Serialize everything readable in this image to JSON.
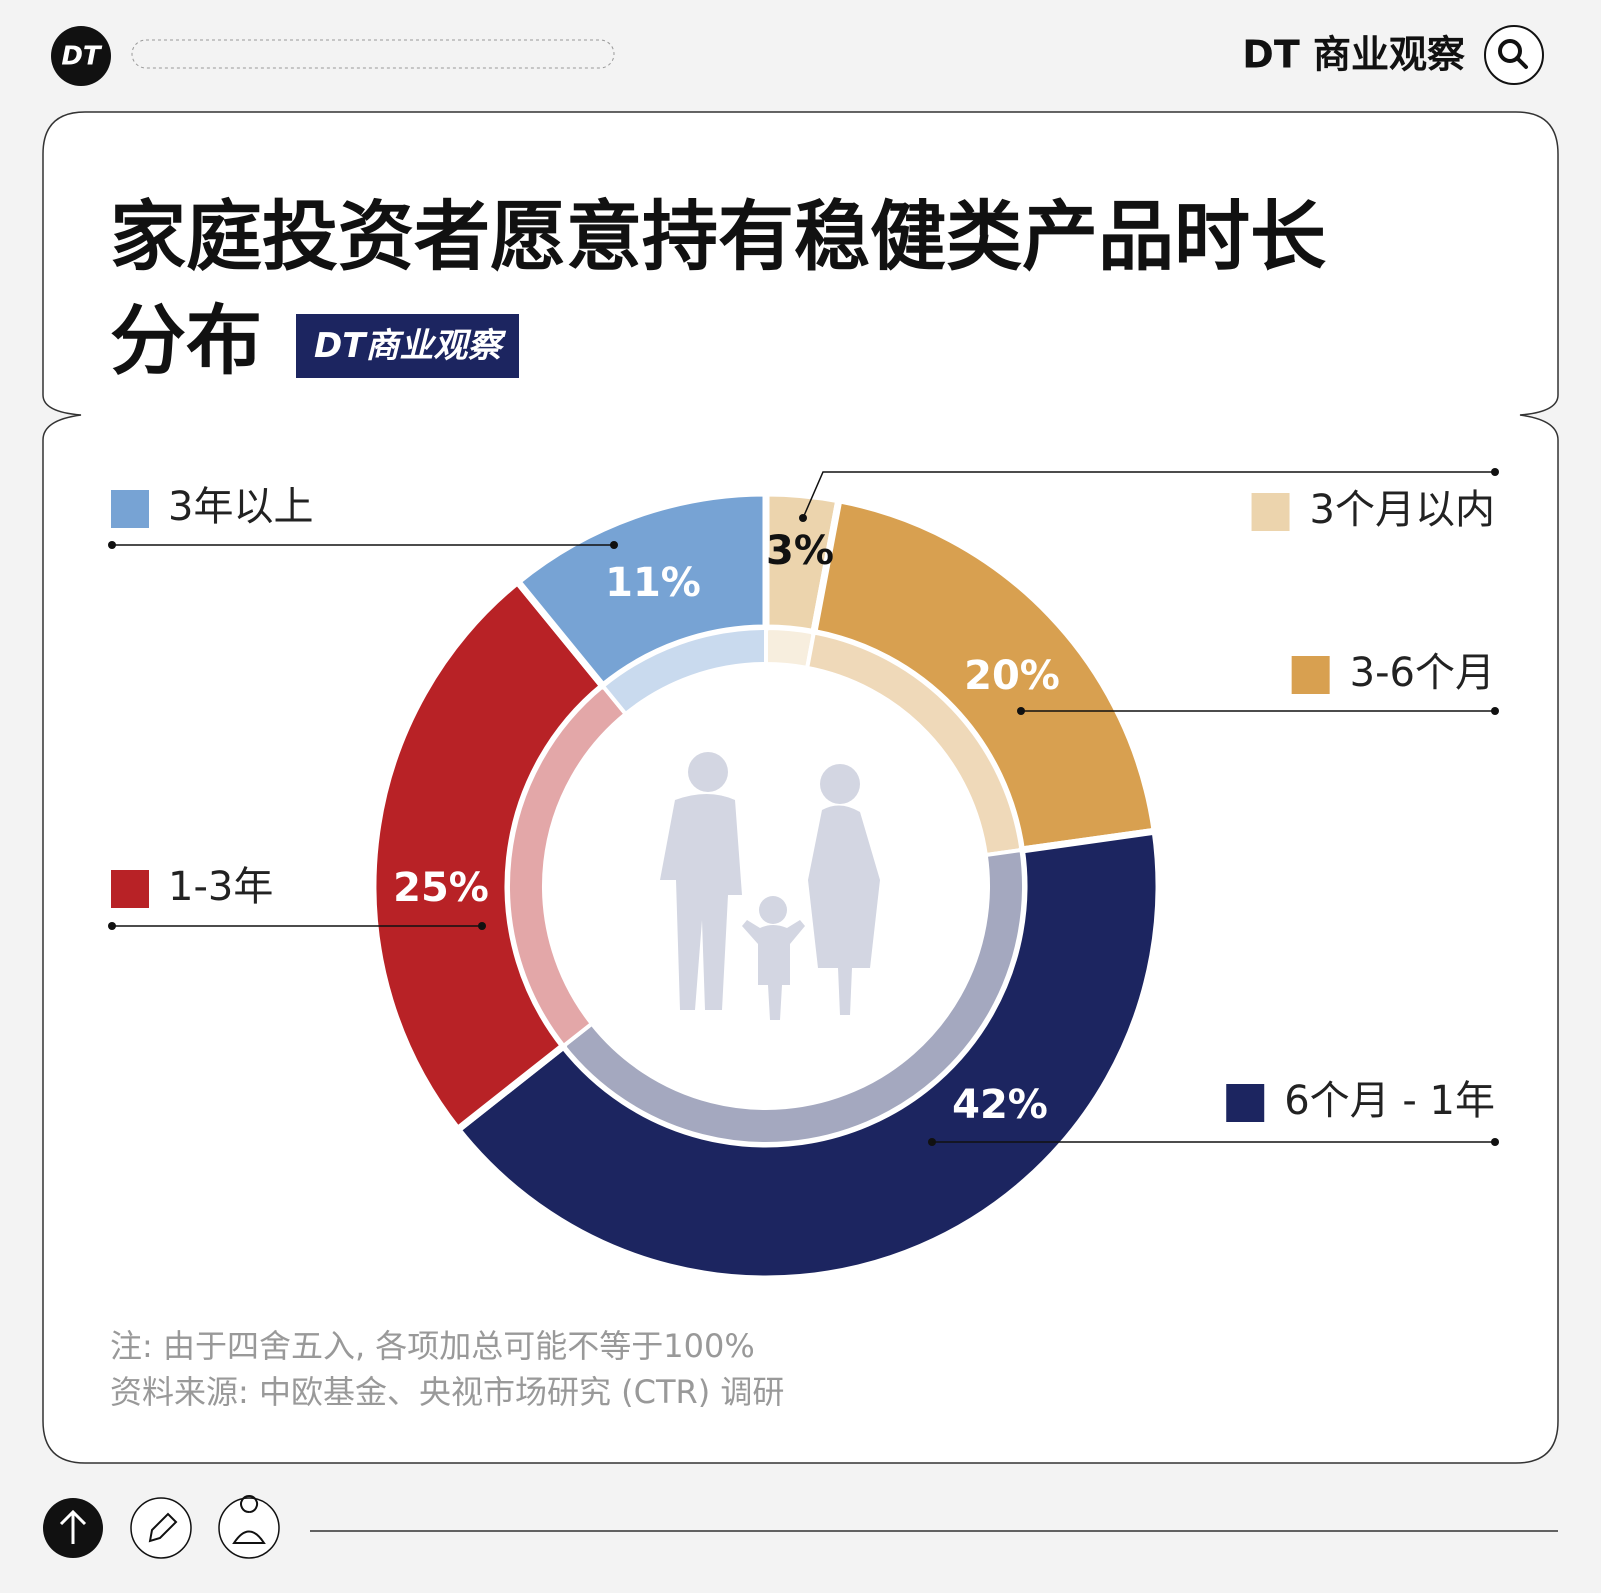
{
  "header": {
    "logo": "DT",
    "brand": "DT 商业观察"
  },
  "chart_data": {
    "type": "pie",
    "title": "家庭投资者愿意持有稳健类产品时长分布",
    "badge": "DT商业观察",
    "categories": [
      "3个月以内",
      "3-6个月",
      "6个月 - 1年",
      "1-3年",
      "3年以上"
    ],
    "values": [
      3,
      20,
      42,
      25,
      11
    ],
    "value_labels": [
      "3%",
      "20%",
      "42%",
      "25%",
      "11%"
    ],
    "colors": [
      "#ecd4ad",
      "#d8a050",
      "#1c2560",
      "#b82226",
      "#77a3d4"
    ],
    "notes": [
      "注: 由于四舍五入, 各项加总可能不等于100%",
      "资料来源: 中欧基金、央视市场研究 (CTR) 调研"
    ]
  }
}
